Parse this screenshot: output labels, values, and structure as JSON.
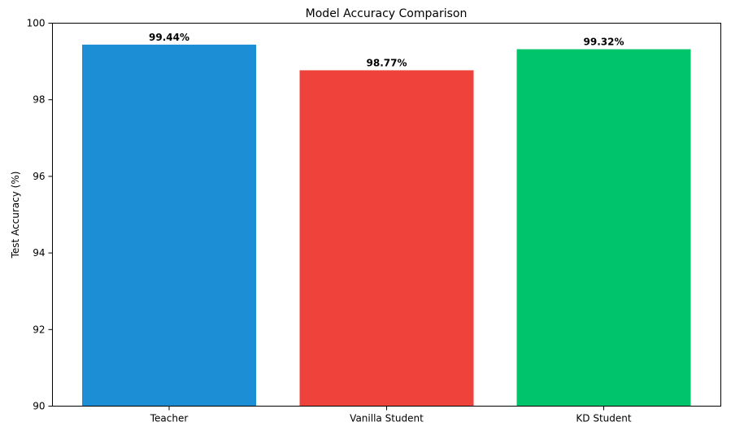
{
  "chart_data": {
    "type": "bar",
    "title": "Model Accuracy Comparison",
    "xlabel": "",
    "ylabel": "Test Accuracy (%)",
    "categories": [
      "Teacher",
      "Vanilla Student",
      "KD Student"
    ],
    "values": [
      99.44,
      98.77,
      99.32
    ],
    "data_labels": [
      "99.44%",
      "98.77%",
      "99.32%"
    ],
    "colors": [
      "#1b8ed6",
      "#ef423a",
      "#00c46b"
    ],
    "ylim": [
      90,
      100
    ],
    "yticks": [
      90,
      92,
      94,
      96,
      98,
      100
    ],
    "grid": false,
    "legend": "none"
  }
}
